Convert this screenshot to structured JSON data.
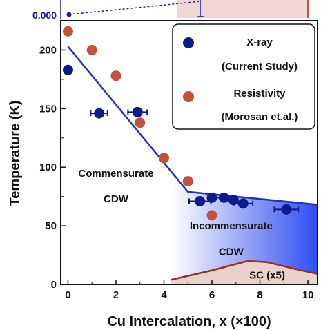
{
  "colors": {
    "xray": "#0d1b8c",
    "resistivity": "#c8503a",
    "boundary_line": "#1f33b5",
    "cdw_gradient_end": "#2f4ef0",
    "sc_fill": "#ead2cc",
    "sc_line": "#a02a24",
    "top_panel_fill": "#f2d6d6",
    "top_panel_line": "#1a1a9c"
  },
  "top_panel": {
    "tick_label": "0.000"
  },
  "chart_data": {
    "type": "scatter",
    "xlabel": "Cu Intercalation, x (×100)",
    "ylabel": "Temperature (K)",
    "xlim": [
      -0.3,
      10.4
    ],
    "ylim": [
      0,
      225
    ],
    "x_ticks": [
      0,
      2,
      4,
      6,
      8,
      10
    ],
    "x_tick_labels": [
      "0",
      "2",
      "4",
      "6",
      "8",
      "10"
    ],
    "y_ticks": [
      0,
      50,
      100,
      150,
      200
    ],
    "y_tick_labels": [
      "0",
      "50",
      "100",
      "150",
      "200"
    ],
    "legend_placement": "top-right",
    "series": [
      {
        "name": "X-ray",
        "name_line2": "(Current Study)",
        "marker": "circle",
        "points": [
          {
            "x": 0,
            "y": 183
          },
          {
            "x": 1.3,
            "y": 146,
            "xerr": 0.35
          },
          {
            "x": 2.9,
            "y": 147,
            "xerr": 0.4
          },
          {
            "x": 5.5,
            "y": 71,
            "xerr": 0.45
          },
          {
            "x": 6.0,
            "y": 74
          },
          {
            "x": 6.5,
            "y": 74,
            "xerr": 0.35
          },
          {
            "x": 6.9,
            "y": 72
          },
          {
            "x": 7.3,
            "y": 69,
            "xerr": 0.4
          },
          {
            "x": 9.1,
            "y": 64,
            "xerr": 0.5
          }
        ]
      },
      {
        "name": "Resistivity",
        "name_line2": "(Morosan et.al.)",
        "marker": "circle",
        "points": [
          {
            "x": 0,
            "y": 216
          },
          {
            "x": 1.0,
            "y": 200
          },
          {
            "x": 2.0,
            "y": 178
          },
          {
            "x": 3.0,
            "y": 138
          },
          {
            "x": 4.0,
            "y": 108
          },
          {
            "x": 5.0,
            "y": 88
          },
          {
            "x": 6.0,
            "y": 59
          }
        ]
      }
    ],
    "phase_boundary": [
      {
        "x": 0,
        "y": 203
      },
      {
        "x": 5.0,
        "y": 79
      },
      {
        "x": 10.4,
        "y": 68
      }
    ],
    "sc_dome": [
      {
        "x": 4.3,
        "y": 4
      },
      {
        "x": 6.0,
        "y": 12
      },
      {
        "x": 7.5,
        "y": 20
      },
      {
        "x": 8.3,
        "y": 19
      },
      {
        "x": 9.5,
        "y": 13
      },
      {
        "x": 10.4,
        "y": 9
      }
    ],
    "icdw_region_xmin": 4.3,
    "annotations": [
      {
        "text": "Commensurate",
        "x": 2.0,
        "y": 92
      },
      {
        "text": "CDW",
        "x": 2.0,
        "y": 70
      },
      {
        "text": "Incommensurate",
        "x": 6.8,
        "y": 47
      },
      {
        "text": "CDW",
        "x": 6.8,
        "y": 25
      },
      {
        "text": "SC (x5)",
        "x": 8.3,
        "y": 5
      }
    ]
  }
}
